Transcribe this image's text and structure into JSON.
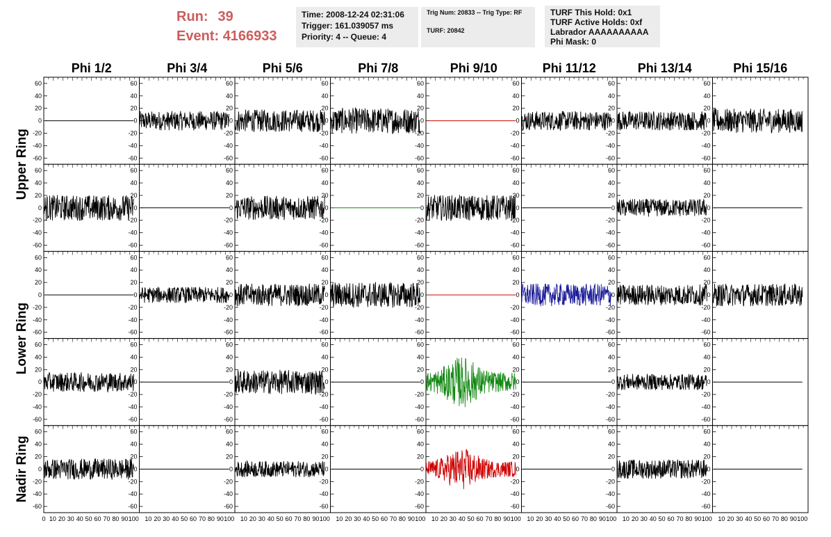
{
  "header": {
    "run_label": "Run:",
    "run_value": "39",
    "event_label": "Event:",
    "event_value": "4166933",
    "time": "Time: 2008-12-24 02:31:06",
    "trigger": "Trigger: 161.039057 ms",
    "priority": "Priority: 4 -- Queue: 4",
    "trig_num": "Trig Num: 20833 -- Trig Type: RF",
    "turf": "TURF: 20842",
    "turf_this_hold": "TURF This Hold: 0x1",
    "turf_active_holds": "TURF Active Holds: 0xf",
    "labrador": "Labrador AAAAAAAAAA",
    "phi_mask": "Phi Mask: 0"
  },
  "chart_data": {
    "type": "line",
    "columns": [
      "Phi 1/2",
      "Phi 3/4",
      "Phi 5/6",
      "Phi 7/8",
      "Phi 9/10",
      "Phi 11/12",
      "Phi 13/14",
      "Phi 15/16"
    ],
    "ring_labels": [
      "Upper Ring",
      "Lower Ring",
      "Nadir Ring"
    ],
    "rows": 5,
    "xlim": [
      0,
      100
    ],
    "ylim": [
      -70,
      70
    ],
    "y_ticks": [
      60,
      40,
      20,
      0,
      -20,
      -40,
      -60
    ],
    "x_ticks": [
      0,
      10,
      20,
      30,
      40,
      50,
      60,
      70,
      80,
      90,
      100
    ],
    "colors": {
      "black": "#000000",
      "red": "#cc0000",
      "green": "#118811",
      "blue": "#1a1a99"
    },
    "panels": [
      [
        {
          "flat": true,
          "color": "black"
        },
        {
          "amp": 12,
          "color": "black"
        },
        {
          "amp": 14,
          "color": "black"
        },
        {
          "amp": 16,
          "color": "black"
        },
        {
          "flat": true,
          "color": "red"
        },
        {
          "amp": 12,
          "color": "black"
        },
        {
          "amp": 12,
          "color": "black"
        },
        {
          "amp": 15,
          "color": "black"
        }
      ],
      [
        {
          "amp": 16,
          "color": "black"
        },
        {
          "flat": true,
          "color": "black"
        },
        {
          "amp": 15,
          "color": "black"
        },
        {
          "flat": true,
          "color": "green"
        },
        {
          "amp": 16,
          "color": "black"
        },
        {
          "flat": true,
          "color": "black"
        },
        {
          "amp": 11,
          "color": "black"
        },
        {
          "flat": true,
          "color": "black"
        }
      ],
      [
        {
          "flat": true,
          "color": "black"
        },
        {
          "amp": 10,
          "color": "black"
        },
        {
          "amp": 14,
          "color": "black"
        },
        {
          "amp": 16,
          "color": "black"
        },
        {
          "flat": true,
          "color": "red"
        },
        {
          "amp": 14,
          "color": "blue"
        },
        {
          "amp": 13,
          "color": "black"
        },
        {
          "amp": 14,
          "color": "black"
        }
      ],
      [
        {
          "amp": 12,
          "color": "black"
        },
        {
          "flat": true,
          "color": "black"
        },
        {
          "amp": 15,
          "color": "black"
        },
        {
          "flat": true,
          "color": "black"
        },
        {
          "amp": 22,
          "color": "green",
          "peak": 0.4
        },
        {
          "flat": true,
          "color": "black"
        },
        {
          "amp": 10,
          "color": "black"
        },
        {
          "flat": true,
          "color": "black"
        }
      ],
      [
        {
          "amp": 13,
          "color": "black"
        },
        {
          "flat": true,
          "color": "black"
        },
        {
          "amp": 10,
          "color": "black"
        },
        {
          "flat": true,
          "color": "black"
        },
        {
          "amp": 18,
          "color": "red",
          "peak": 0.4
        },
        {
          "flat": true,
          "color": "black"
        },
        {
          "amp": 12,
          "color": "black"
        },
        {
          "flat": true,
          "color": "black"
        }
      ]
    ]
  }
}
